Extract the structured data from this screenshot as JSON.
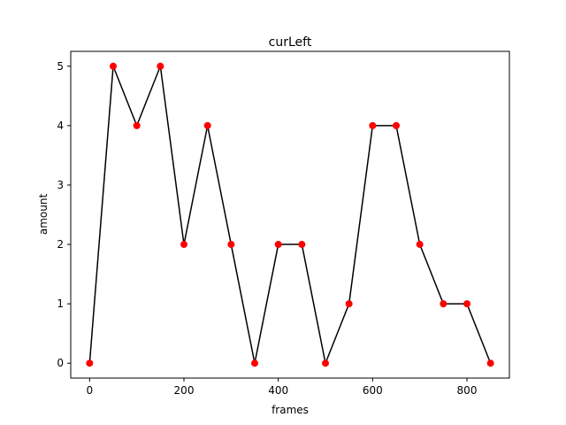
{
  "chart_data": {
    "type": "line",
    "title": "curLeft",
    "xlabel": "frames",
    "ylabel": "amount",
    "xlim": [
      -40,
      890
    ],
    "ylim": [
      -0.25,
      5.25
    ],
    "xticks": [
      0,
      200,
      400,
      600,
      800
    ],
    "yticks": [
      0,
      1,
      2,
      3,
      4,
      5
    ],
    "grid": false,
    "series": [
      {
        "x": [
          0,
          50,
          100,
          150,
          200,
          250,
          300,
          350,
          400,
          450,
          500,
          550,
          600,
          650,
          700,
          750,
          800,
          850
        ],
        "y": [
          0,
          5,
          4,
          5,
          2,
          4,
          2,
          0,
          2,
          2,
          0,
          1,
          4,
          4,
          2,
          1,
          1,
          0
        ],
        "line_color": "#000000",
        "marker_color": "#ff0000"
      }
    ]
  }
}
